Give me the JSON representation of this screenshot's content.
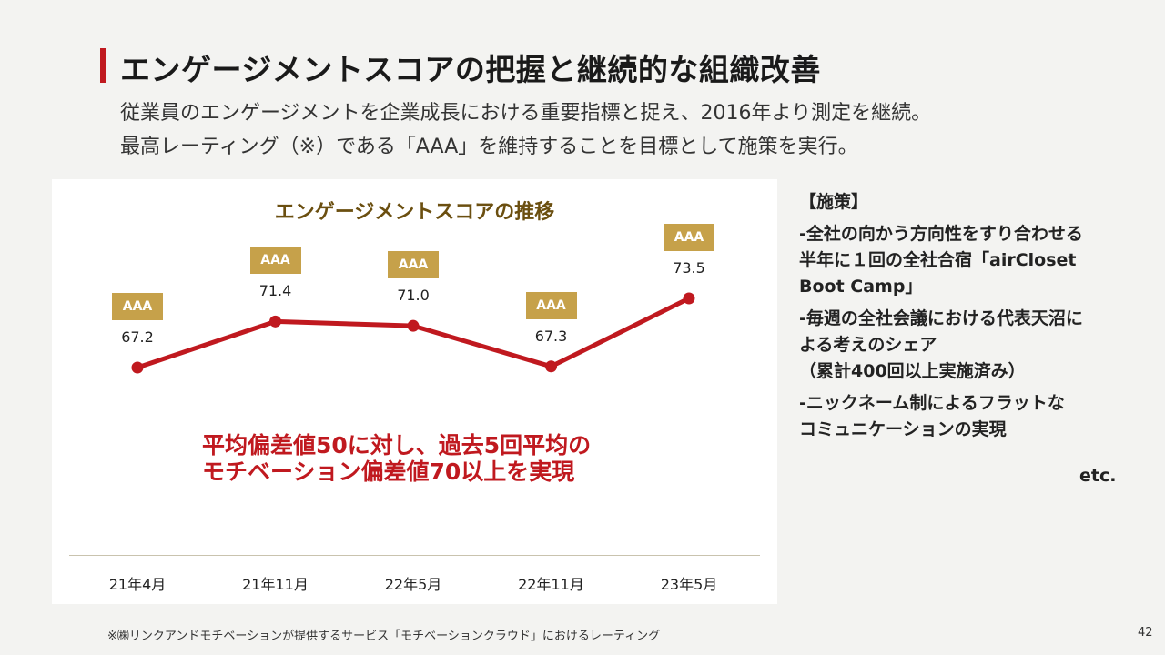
{
  "header": {
    "title": "エンゲージメントスコアの把握と継続的な組織改善",
    "subtitle_line1": "従業員のエンゲージメントを企業成長における重要指標と捉え、2016年より測定を継続。",
    "subtitle_line2": "最高レーティング（※）である「AAA」を維持することを目標として施策を実行。"
  },
  "chart_data": {
    "type": "line",
    "title": "エンゲージメントスコアの推移",
    "categories": [
      "21年4月",
      "21年11月",
      "22年5月",
      "22年11月",
      "23年5月"
    ],
    "series": [
      {
        "values": [
          67.2,
          71.4,
          71.0,
          67.3,
          73.5
        ]
      }
    ],
    "data_labels": [
      "67.2",
      "71.4",
      "71.0",
      "67.3",
      "73.5"
    ],
    "badges": [
      "AAA",
      "AAA",
      "AAA",
      "AAA",
      "AAA"
    ],
    "line_color": "#c0191f",
    "badge_color": "#c6a14a",
    "grid": false
  },
  "highlight": {
    "line1": "平均偏差値50に対し、過去5回平均の",
    "line2": "モチベーション偏差値70以上を実現"
  },
  "measures": {
    "heading": "【施策】",
    "items": [
      [
        "-全社の向かう方向性をすり合わせる",
        "半年に１回の全社合宿「airCloset",
        "Boot Camp」"
      ],
      [
        "-毎週の全社会議における代表天沼に",
        "よる考えのシェア",
        "（累計400回以上実施済み）"
      ],
      [
        "-ニックネーム制によるフラットな",
        "コミュニケーションの実現"
      ]
    ],
    "etc": "etc."
  },
  "footer": {
    "footnote": "※㈱リンクアンドモチベーションが提供するサービス「モチベーションクラウド」におけるレーティング",
    "page_number": "42"
  },
  "colors": {
    "accent": "#c0191f",
    "gold": "#c6a14a",
    "chart_title": "#6b4f10",
    "background": "#f3f3f1"
  }
}
